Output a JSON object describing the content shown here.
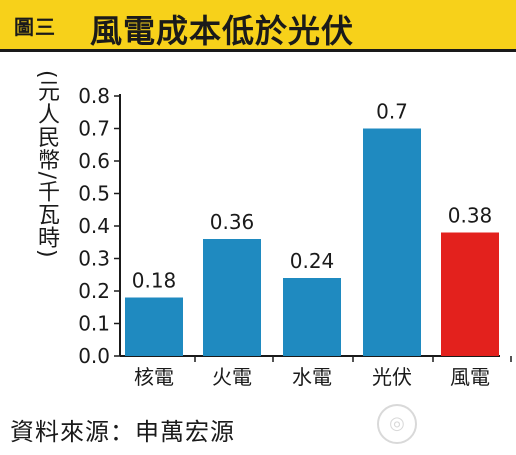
{
  "header": {
    "label": "圖三",
    "title": "風電成本低於光伏"
  },
  "chart_data": {
    "type": "bar",
    "ylabel": "(元人民幣/千瓦時)",
    "ylim": [
      0,
      0.8
    ],
    "yticks": [
      "0.0",
      "0.1",
      "0.2",
      "0.3",
      "0.4",
      "0.5",
      "0.6",
      "0.7",
      "0.8"
    ],
    "categories": [
      "核電",
      "火電",
      "水電",
      "光伏",
      "風電"
    ],
    "values": [
      0.18,
      0.36,
      0.24,
      0.7,
      0.38
    ],
    "data_labels": [
      "0.18",
      "0.36",
      "0.24",
      "0.7",
      "0.38"
    ],
    "colors": [
      "#1f8ac0",
      "#1f8ac0",
      "#1f8ac0",
      "#1f8ac0",
      "#e3211d"
    ],
    "grid": false
  },
  "footer": {
    "source": "資料來源：申萬宏源"
  },
  "colors": {
    "banner": "#f7d11a",
    "bar_blue": "#1f8ac0",
    "bar_red": "#e3211d"
  }
}
